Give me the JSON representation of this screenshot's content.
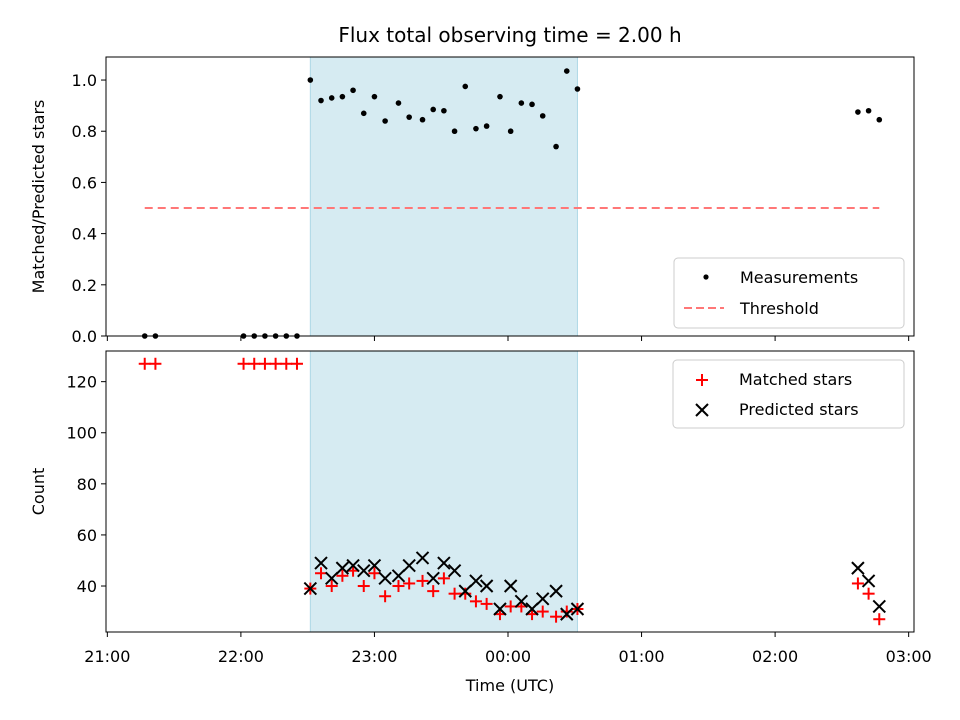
{
  "chart_data": {
    "type": "scatter",
    "title": "Flux total observing time = 2.00 h",
    "xlabel": "Time (UTC)",
    "x_ticks": [
      "21:00",
      "22:00",
      "23:00",
      "00:00",
      "01:00",
      "02:00",
      "03:00"
    ],
    "x_tick_hours": [
      21,
      22,
      23,
      24,
      25,
      26,
      27
    ],
    "x_range_hours": [
      20.99,
      27.04
    ],
    "highlight_span_hours": [
      22.52,
      24.52
    ],
    "highlight_color": "#add8e6",
    "panels": [
      {
        "name": "ratio",
        "ylabel": "Matched/Predicted stars",
        "ylim": [
          0,
          1.09
        ],
        "y_ticks": [
          0.0,
          0.2,
          0.4,
          0.6,
          0.8,
          1.0
        ],
        "y_tick_labels": [
          "0.0",
          "0.2",
          "0.4",
          "0.6",
          "0.8",
          "1.0"
        ],
        "legend_position": "lower-right",
        "series": [
          {
            "name": "Measurements",
            "marker": "dot",
            "color": "#000000",
            "x": [
              21.28,
              21.36,
              22.02,
              22.1,
              22.18,
              22.26,
              22.34,
              22.42,
              22.52,
              22.6,
              22.68,
              22.76,
              22.84,
              22.92,
              23.0,
              23.08,
              23.18,
              23.26,
              23.36,
              23.44,
              23.52,
              23.6,
              23.68,
              23.76,
              23.84,
              23.94,
              24.02,
              24.1,
              24.18,
              24.26,
              24.36,
              24.44,
              24.52,
              26.62,
              26.7,
              26.78
            ],
            "y": [
              0.0,
              0.0,
              0.0,
              0.0,
              0.0,
              0.0,
              0.0,
              0.0,
              1.0,
              0.92,
              0.93,
              0.935,
              0.96,
              0.87,
              0.935,
              0.84,
              0.91,
              0.855,
              0.845,
              0.885,
              0.88,
              0.8,
              0.975,
              0.81,
              0.82,
              0.935,
              0.8,
              0.91,
              0.905,
              0.86,
              0.74,
              1.035,
              0.965,
              0.875,
              0.88,
              0.845
            ]
          },
          {
            "name": "Threshold",
            "marker": "dashed-line",
            "color": "#ff7777",
            "x": [
              21.28,
              26.78
            ],
            "y": [
              0.5,
              0.5
            ]
          }
        ]
      },
      {
        "name": "counts",
        "ylabel": "Count",
        "ylim": [
          22,
          132
        ],
        "y_ticks": [
          40,
          60,
          80,
          100,
          120
        ],
        "y_tick_labels": [
          "40",
          "60",
          "80",
          "100",
          "120"
        ],
        "legend_position": "top-right",
        "series": [
          {
            "name": "Matched stars",
            "marker": "plus",
            "color": "#ff0000",
            "x": [
              21.28,
              21.36,
              22.02,
              22.1,
              22.18,
              22.26,
              22.34,
              22.42,
              22.52,
              22.6,
              22.68,
              22.76,
              22.84,
              22.92,
              23.0,
              23.08,
              23.18,
              23.26,
              23.36,
              23.44,
              23.52,
              23.6,
              23.68,
              23.76,
              23.84,
              23.94,
              24.02,
              24.1,
              24.18,
              24.26,
              24.36,
              24.44,
              24.52,
              26.62,
              26.7,
              26.78
            ],
            "y": [
              127,
              127,
              127,
              127,
              127,
              127,
              127,
              127,
              39,
              45,
              40,
              44,
              46,
              40,
              45,
              36,
              40,
              41,
              42,
              38,
              43,
              37,
              37,
              34,
              33,
              29,
              32,
              32,
              29,
              30,
              28,
              30,
              31,
              41,
              37,
              27
            ]
          },
          {
            "name": "Predicted stars",
            "marker": "x",
            "color": "#000000",
            "x": [
              22.52,
              22.6,
              22.68,
              22.76,
              22.84,
              22.92,
              23.0,
              23.08,
              23.18,
              23.26,
              23.36,
              23.44,
              23.52,
              23.6,
              23.68,
              23.76,
              23.84,
              23.94,
              24.02,
              24.1,
              24.18,
              24.26,
              24.36,
              24.44,
              24.52,
              26.62,
              26.7,
              26.78
            ],
            "y": [
              39,
              49,
              43,
              47,
              48,
              46,
              48,
              43,
              44,
              48,
              51,
              43,
              49,
              46,
              38,
              42,
              40,
              31,
              40,
              34,
              31,
              35,
              38,
              29,
              31,
              47,
              42,
              32
            ]
          }
        ]
      }
    ]
  }
}
